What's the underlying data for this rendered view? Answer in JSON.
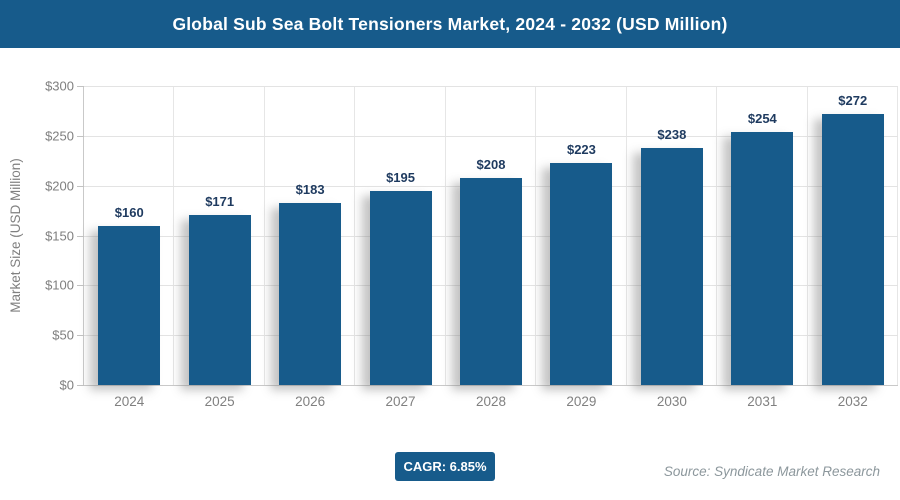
{
  "header": {
    "title": "Global Sub Sea Bolt Tensioners Market, 2024 - 2032 (USD Million)"
  },
  "chart_data": {
    "type": "bar",
    "title": "Global Sub Sea Bolt Tensioners Market, 2024 - 2032 (USD Million)",
    "categories": [
      "2024",
      "2025",
      "2026",
      "2027",
      "2028",
      "2029",
      "2030",
      "2031",
      "2032"
    ],
    "values": [
      160,
      171,
      183,
      195,
      208,
      223,
      238,
      254,
      272
    ],
    "value_prefix": "$",
    "xlabel": "",
    "ylabel": "Market Size (USD Million)",
    "ylim": [
      0,
      300
    ],
    "ytick_step": 50,
    "ytick_labels": [
      "$0",
      "$50",
      "$100",
      "$150",
      "$200",
      "$250",
      "$300"
    ],
    "grid": true,
    "legend": "none"
  },
  "footer": {
    "cagr_label": "CAGR: 6.85%",
    "source": "Source: Syndicate Market Research"
  },
  "colors": {
    "accent_blue": "#175b8b",
    "value_label": "#1e3a5f",
    "axis_text": "#808080",
    "gridline": "#e3e3e3"
  }
}
